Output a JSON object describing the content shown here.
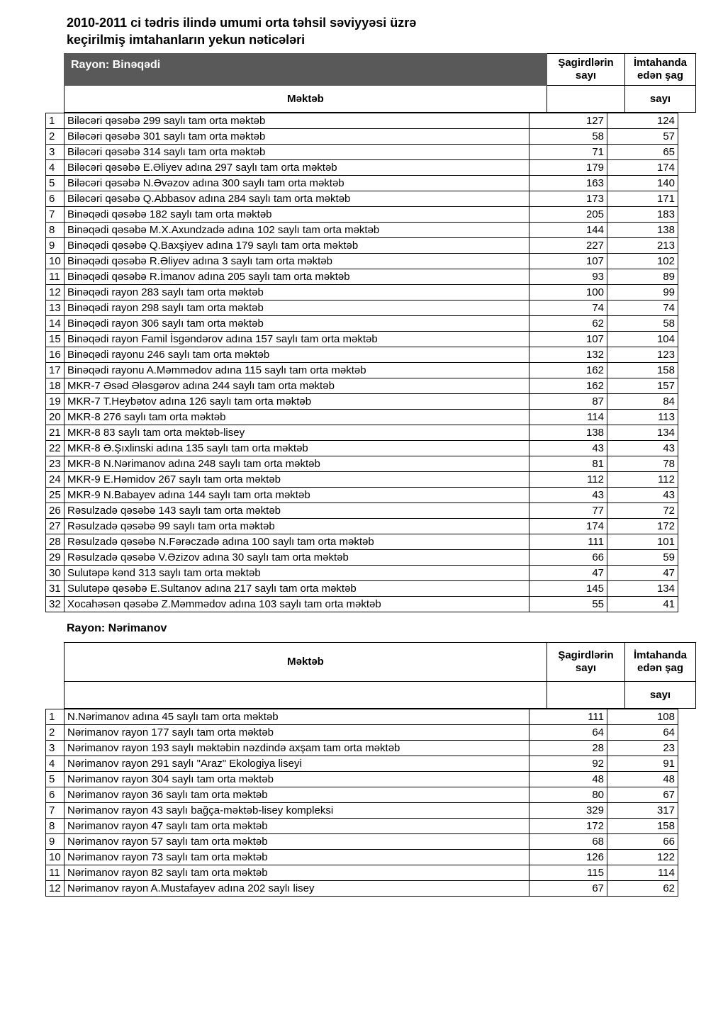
{
  "title_line1": "2010-2011 ci tədris ilində  umumi orta təhsil səviyyəsi üzrə",
  "title_line2": "keçirilmiş  imtahanların yekun nəticələri",
  "col_students": "Şagirdlərin sayı",
  "col_exam": "İmtahanda edən şag",
  "col_school": "Məktəb",
  "col_count": "sayı",
  "region1": {
    "label": "Rayon:  Binəqədi",
    "rows": [
      {
        "n": "1",
        "school": "Biləcəri qəsəbə 299 saylı tam orta məktəb",
        "v1": "127",
        "v2": "124"
      },
      {
        "n": "2",
        "school": "Biləcəri qəsəbə 301 saylı tam orta məktəb",
        "v1": "58",
        "v2": "57"
      },
      {
        "n": "3",
        "school": "Biləcəri qəsəbə 314 saylı tam orta məktəb",
        "v1": "71",
        "v2": "65"
      },
      {
        "n": "4",
        "school": "Biləcəri qəsəbə E.Əliyev adına 297 saylı tam orta məktəb",
        "v1": "179",
        "v2": "174"
      },
      {
        "n": "5",
        "school": "Biləcəri qəsəbə N.Əvəzov adına 300 saylı tam orta məktəb",
        "v1": "163",
        "v2": "140"
      },
      {
        "n": "6",
        "school": "Biləcəri qəsəbə Q.Abbasov adına 284 saylı tam orta məktəb",
        "v1": "173",
        "v2": "171"
      },
      {
        "n": "7",
        "school": "Binəqədi qəsəbə 182 saylı tam orta məktəb",
        "v1": "205",
        "v2": "183"
      },
      {
        "n": "8",
        "school": "Binəqədi qəsəbə M.X.Axundzadə adına 102 saylı tam orta məktəb",
        "v1": "144",
        "v2": "138"
      },
      {
        "n": "9",
        "school": "Binəqədi qəsəbə Q.Baxşiyev adına 179 saylı tam orta məktəb",
        "v1": "227",
        "v2": "213"
      },
      {
        "n": "10",
        "school": "Binəqədi qəsəbə R.Əliyev adına 3 saylı tam orta məktəb",
        "v1": "107",
        "v2": "102"
      },
      {
        "n": "11",
        "school": "Binəqədi qəsəbə R.İmanov adına 205 saylı tam orta məktəb",
        "v1": "93",
        "v2": "89"
      },
      {
        "n": "12",
        "school": "Binəqədi rayon 283 saylı tam orta məktəb",
        "v1": "100",
        "v2": "99"
      },
      {
        "n": "13",
        "school": "Binəqədi rayon 298 saylı tam orta məktəb",
        "v1": "74",
        "v2": "74"
      },
      {
        "n": "14",
        "school": "Binəqədi rayon 306 saylı tam orta məktəb",
        "v1": "62",
        "v2": "58"
      },
      {
        "n": "15",
        "school": "Binəqədi rayon Famil İsgəndərov adına 157 saylı tam orta məktəb",
        "v1": "107",
        "v2": "104"
      },
      {
        "n": "16",
        "school": "Binəqədi rayonu  246 saylı tam orta məktəb",
        "v1": "132",
        "v2": "123"
      },
      {
        "n": "17",
        "school": "Binəqədi rayonu A.Məmmədov adına 115 saylı tam orta məktəb",
        "v1": "162",
        "v2": "158"
      },
      {
        "n": "18",
        "school": "MKR-7 Əsəd Ələsgərov adına 244 saylı tam orta məktəb",
        "v1": "162",
        "v2": "157"
      },
      {
        "n": "19",
        "school": "MKR-7 T.Heybətov adına 126 saylı tam orta məktəb",
        "v1": "87",
        "v2": "84"
      },
      {
        "n": "20",
        "school": "MKR-8 276 saylı tam orta məktəb",
        "v1": "114",
        "v2": "113"
      },
      {
        "n": "21",
        "school": "MKR-8 83 saylı tam orta məktəb-lisey",
        "v1": "138",
        "v2": "134"
      },
      {
        "n": "22",
        "school": "MKR-8 Ə.Şıxlinski adına 135 saylı tam orta məktəb",
        "v1": "43",
        "v2": "43"
      },
      {
        "n": "23",
        "school": "MKR-8 N.Nərimanov adına 248 saylı tam orta məktəb",
        "v1": "81",
        "v2": "78"
      },
      {
        "n": "24",
        "school": "MKR-9 E.Həmidov 267 saylı tam orta məktəb",
        "v1": "112",
        "v2": "112"
      },
      {
        "n": "25",
        "school": "MKR-9 N.Babayev adına 144 saylı tam orta məktəb",
        "v1": "43",
        "v2": "43"
      },
      {
        "n": "26",
        "school": "Rəsulzadə qəsəbə 143 saylı tam orta məktəb",
        "v1": "77",
        "v2": "72"
      },
      {
        "n": "27",
        "school": "Rəsulzadə qəsəbə 99 saylı tam orta məktəb",
        "v1": "174",
        "v2": "172"
      },
      {
        "n": "28",
        "school": "Rəsulzadə qəsəbə N.Fərəczadə adına 100 saylı tam orta məktəb",
        "v1": "111",
        "v2": "101"
      },
      {
        "n": "29",
        "school": "Rəsulzadə qəsəbə V.Əzizov adına 30 saylı tam orta məktəb",
        "v1": "66",
        "v2": "59"
      },
      {
        "n": "30",
        "school": "Sulutəpə kənd 313 saylı tam orta məktəb",
        "v1": "47",
        "v2": "47"
      },
      {
        "n": "31",
        "school": "Sulutəpə qəsəbə E.Sultanov adına 217 saylı tam orta məktəb",
        "v1": "145",
        "v2": "134"
      },
      {
        "n": "32",
        "school": "Xocahəsən qəsəbə Z.Məmmədov adına 103 saylı tam orta məktəb",
        "v1": "55",
        "v2": "41"
      }
    ]
  },
  "region2": {
    "label": "Rayon:  Nərimanov",
    "rows": [
      {
        "n": "1",
        "school": "N.Nərimanov adına 45 saylı tam orta məktəb",
        "v1": "111",
        "v2": "108"
      },
      {
        "n": "2",
        "school": "Nərimanov rayon 177 saylı tam orta məktəb",
        "v1": "64",
        "v2": "64"
      },
      {
        "n": "3",
        "school": "Nərimanov rayon 193 saylı məktəbin nəzdində axşam tam orta məktəb",
        "v1": "28",
        "v2": "23"
      },
      {
        "n": "4",
        "school": "Nərimanov rayon 291 saylı \"Araz\"  Ekologiya liseyi",
        "v1": "92",
        "v2": "91"
      },
      {
        "n": "5",
        "school": "Nərimanov rayon 304 saylı tam orta məktəb",
        "v1": "48",
        "v2": "48"
      },
      {
        "n": "6",
        "school": "Nərimanov rayon 36 saylı tam orta məktəb",
        "v1": "80",
        "v2": "67"
      },
      {
        "n": "7",
        "school": "Nərimanov rayon 43 saylı bağça-məktəb-lisey kompleksi",
        "v1": "329",
        "v2": "317"
      },
      {
        "n": "8",
        "school": "Nərimanov rayon 47 saylı tam orta məktəb",
        "v1": "172",
        "v2": "158"
      },
      {
        "n": "9",
        "school": "Nərimanov rayon 57 saylı tam orta məktəb",
        "v1": "68",
        "v2": "66"
      },
      {
        "n": "10",
        "school": "Nərimanov rayon 73 saylı tam orta məktəb",
        "v1": "126",
        "v2": "122"
      },
      {
        "n": "11",
        "school": "Nərimanov rayon 82 saylı tam orta məktəb",
        "v1": "115",
        "v2": "114"
      },
      {
        "n": "12",
        "school": "Nərimanov rayon A.Mustafayev adına 202 saylı lisey",
        "v1": "67",
        "v2": "62"
      }
    ]
  }
}
